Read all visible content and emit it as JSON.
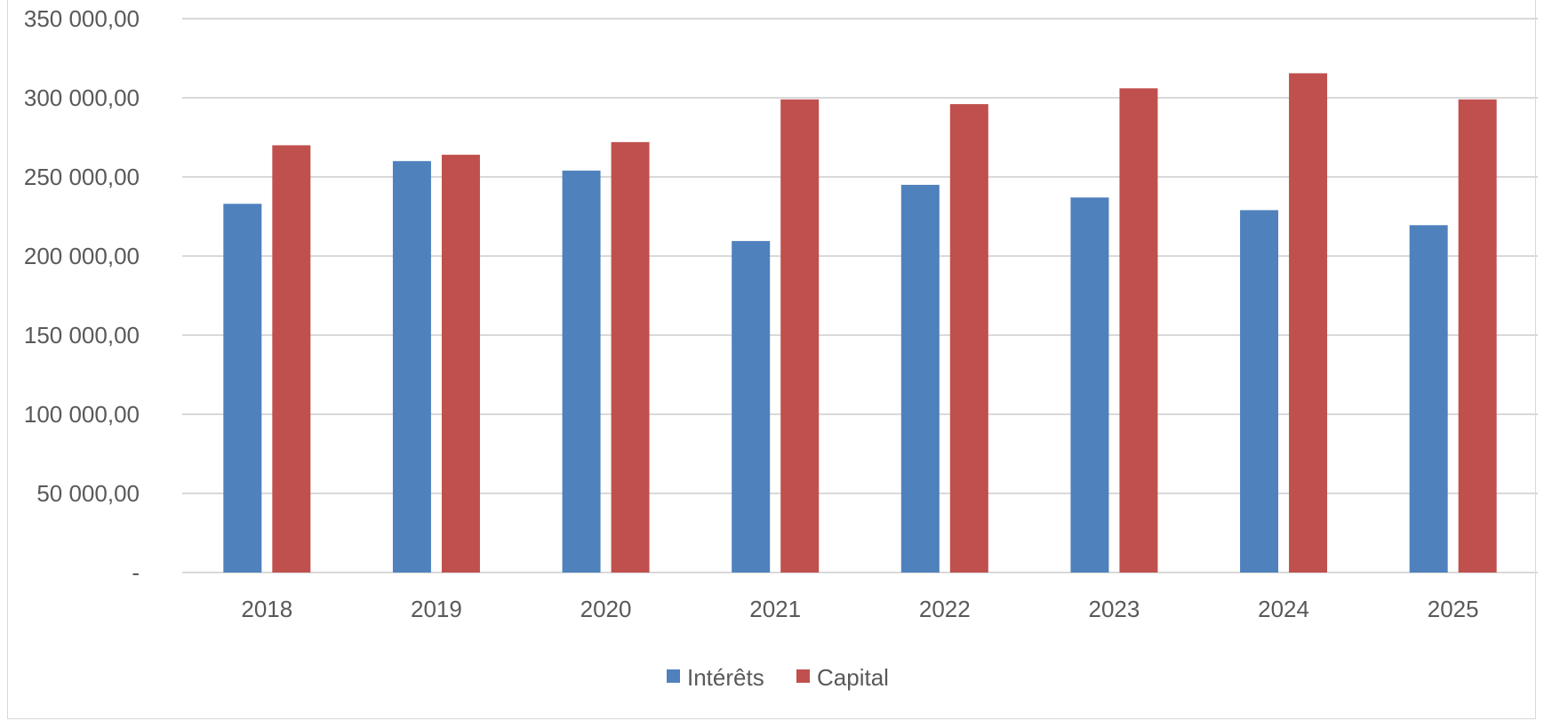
{
  "chart_data": {
    "type": "bar",
    "categories": [
      "2018",
      "2019",
      "2020",
      "2021",
      "2022",
      "2023",
      "2024",
      "2025"
    ],
    "series": [
      {
        "name": "Intérêts",
        "color": "#4F81BD",
        "values": [
          233000,
          260000,
          254000,
          209500,
          245000,
          237000,
          229000,
          219500
        ]
      },
      {
        "name": "Capital",
        "color": "#C0504D",
        "values": [
          270000,
          264000,
          272000,
          299000,
          296000,
          306000,
          315500,
          299000
        ]
      }
    ],
    "ylim": [
      0,
      350000
    ],
    "y_ticks": [
      0,
      50000,
      100000,
      150000,
      200000,
      250000,
      300000,
      350000
    ],
    "y_tick_labels": [
      "-",
      "50 000,00",
      "100 000,00",
      "150 000,00",
      "200 000,00",
      "250 000,00",
      "300 000,00",
      "350 000,00"
    ],
    "gridlines": true,
    "legend_position": "bottom",
    "title": "",
    "xlabel": "",
    "ylabel": ""
  }
}
